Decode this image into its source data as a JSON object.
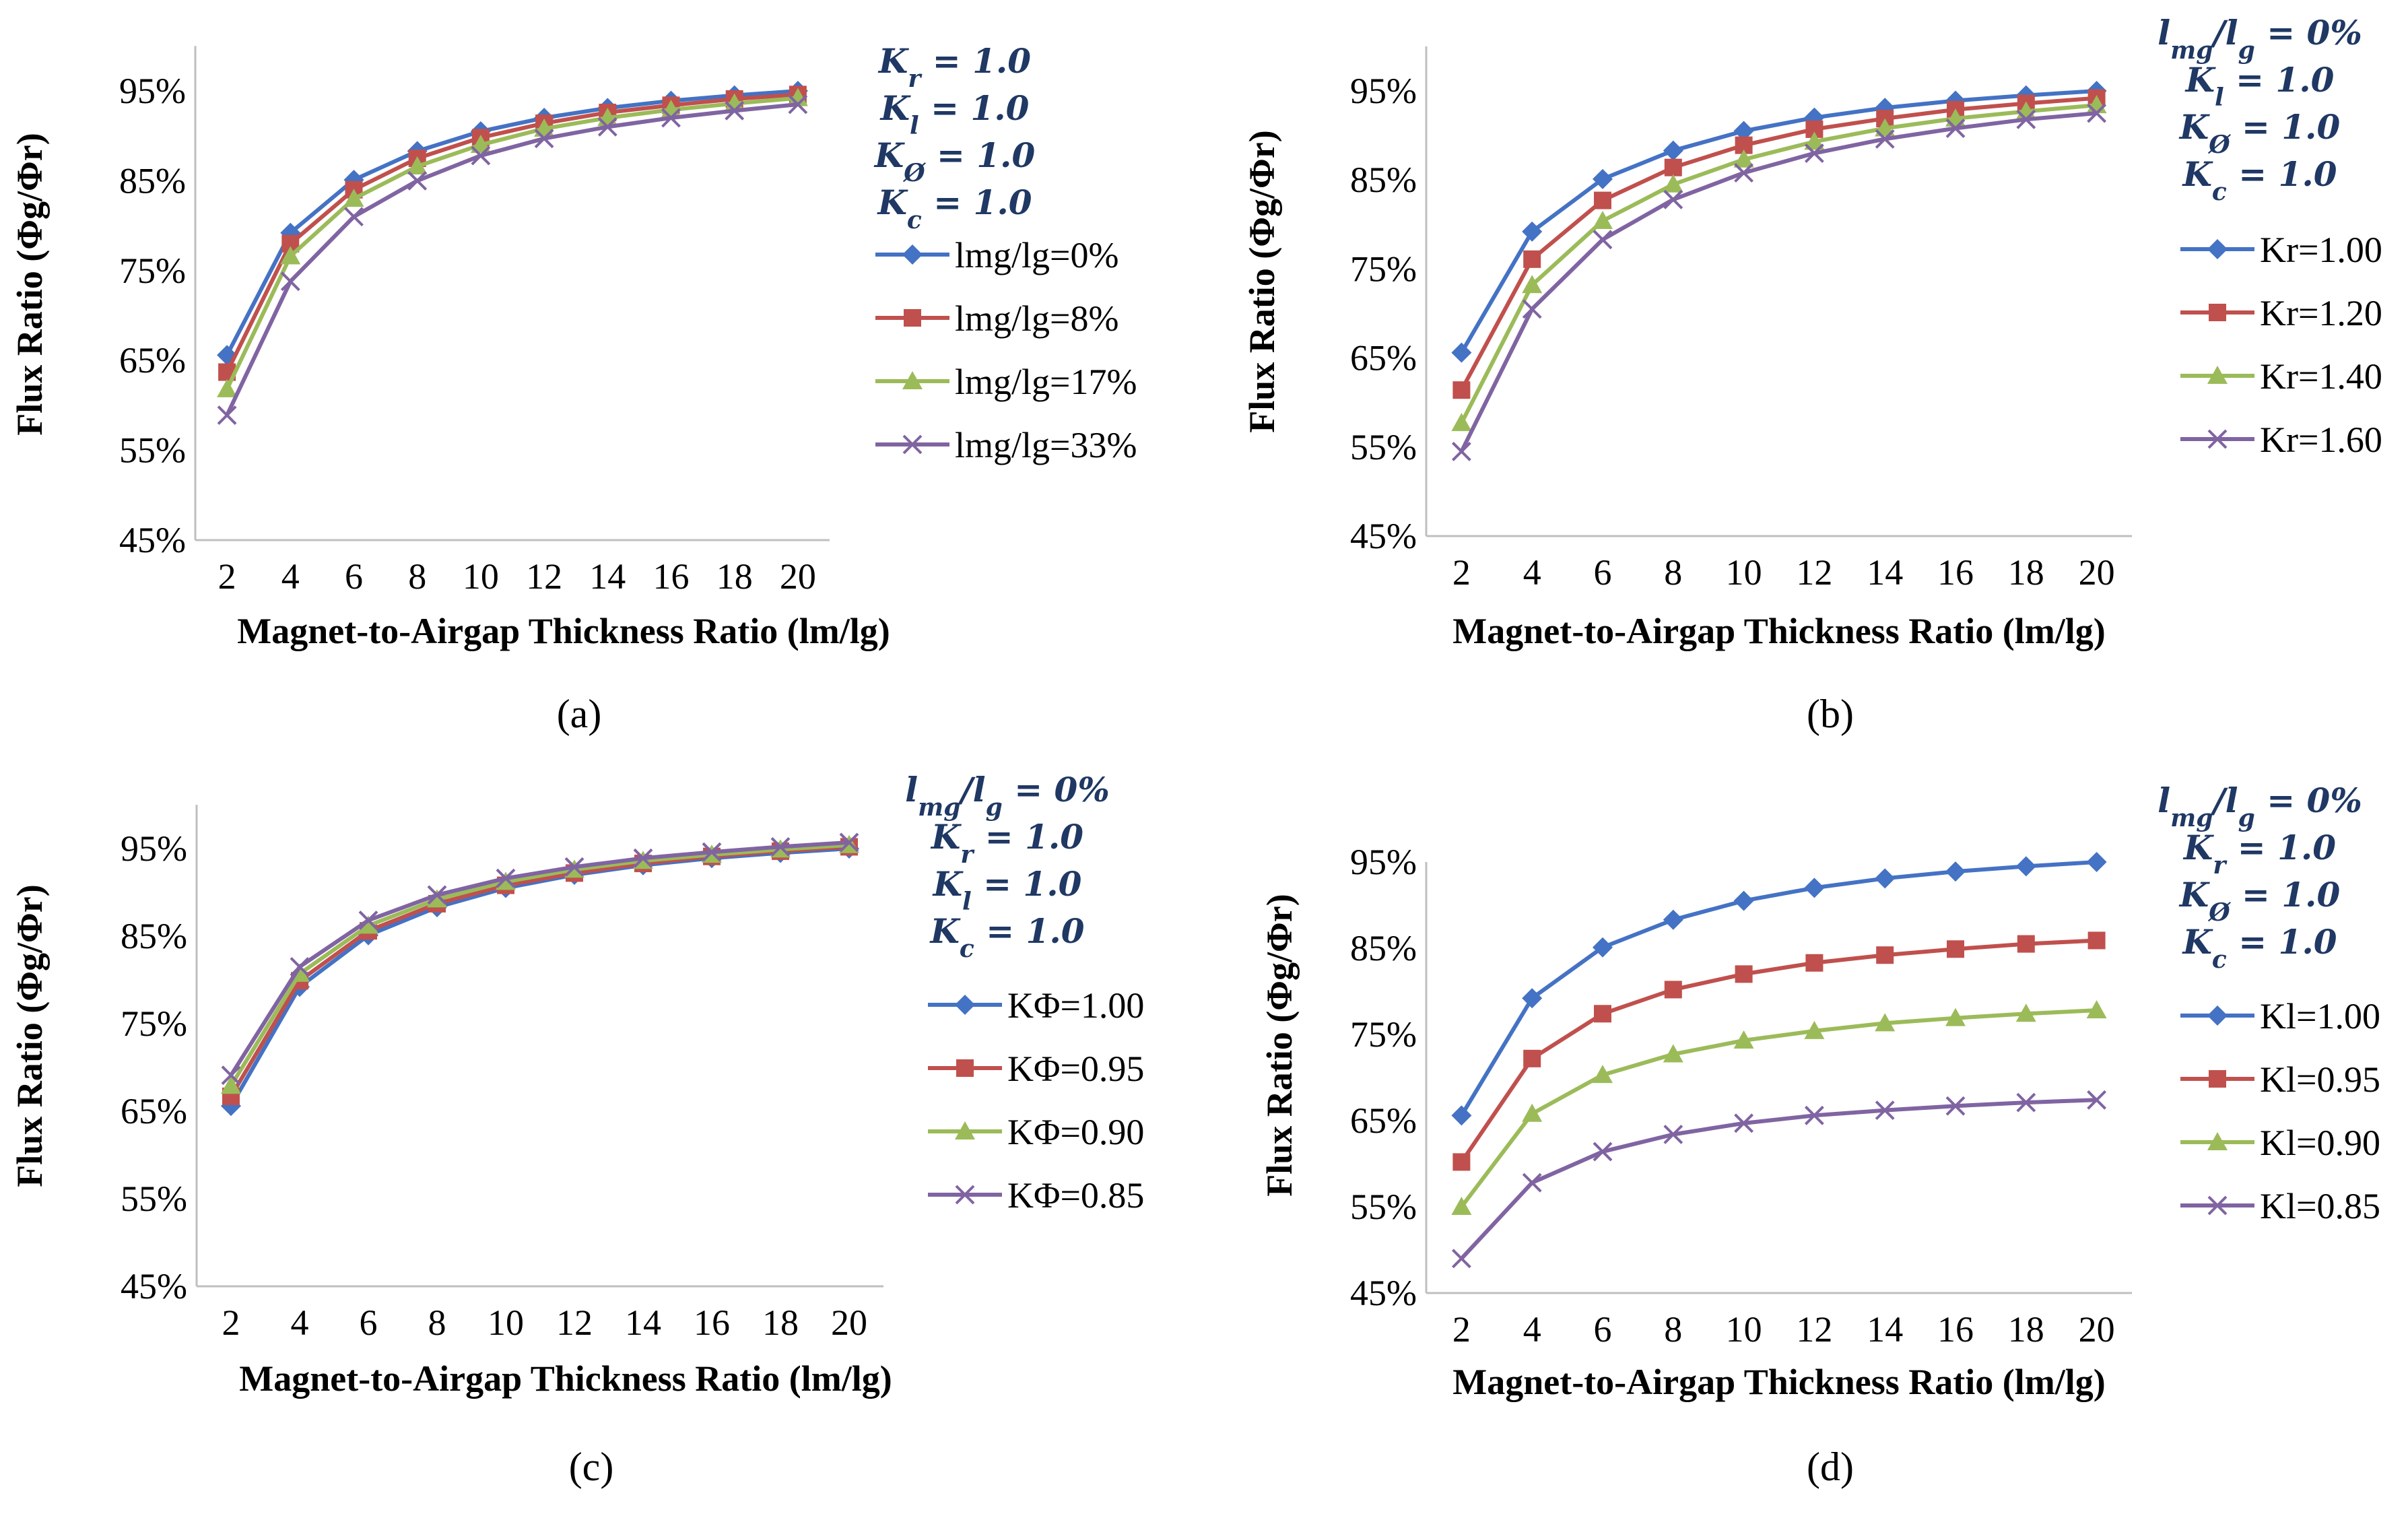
{
  "figure": {
    "y_tick_labels": [
      "45%",
      "55%",
      "65%",
      "75%",
      "85%",
      "95%"
    ],
    "x_tick_labels": [
      "2",
      "4",
      "6",
      "8",
      "10",
      "12",
      "14",
      "16",
      "18",
      "20"
    ]
  },
  "chart_data": [
    {
      "id": "a",
      "type": "line",
      "caption": "(a)",
      "ylabel": "Flux  Ratio (Φg/Φr)",
      "xlabel": "Magnet-to-Airgap Thickness Ratio (lm/lg)",
      "ylim": [
        45,
        100
      ],
      "x": [
        2,
        4,
        6,
        8,
        10,
        12,
        14,
        16,
        18,
        20
      ],
      "params": [
        "K_r = 1.0",
        "K_l = 1.0",
        "K_Ø = 1.0",
        "K_c = 1.0"
      ],
      "series": [
        {
          "name": "lmg/lg=0%",
          "color": "#4472c4",
          "marker": "diamond",
          "values": [
            65.6,
            79.2,
            85.1,
            88.3,
            90.5,
            92.0,
            93.1,
            93.9,
            94.5,
            95.0
          ]
        },
        {
          "name": "lmg/lg=8%",
          "color": "#c0504d",
          "marker": "square",
          "values": [
            63.7,
            78.0,
            84.0,
            87.5,
            89.8,
            91.4,
            92.6,
            93.4,
            94.1,
            94.6
          ]
        },
        {
          "name": "lmg/lg=17%",
          "color": "#9bbb59",
          "marker": "triangle",
          "values": [
            61.8,
            76.6,
            83.0,
            86.6,
            89.0,
            90.8,
            92.0,
            92.9,
            93.6,
            94.2
          ]
        },
        {
          "name": "lmg/lg=33%",
          "color": "#8064a2",
          "marker": "x",
          "values": [
            58.9,
            73.8,
            81.0,
            85.0,
            87.8,
            89.7,
            91.0,
            92.0,
            92.8,
            93.5
          ]
        }
      ]
    },
    {
      "id": "b",
      "type": "line",
      "caption": "(b)",
      "ylabel": "Flux Ratio (Φg/Φr)",
      "xlabel": "Magnet-to-Airgap Thickness Ratio (lm/lg)",
      "ylim": [
        45,
        100
      ],
      "x": [
        2,
        4,
        6,
        8,
        10,
        12,
        14,
        16,
        18,
        20
      ],
      "params": [
        "l_mg/l_g = 0%",
        "K_l = 1.0",
        "K_Ø = 1.0",
        "K_c = 1.0"
      ],
      "series": [
        {
          "name": "Kr=1.00",
          "color": "#4472c4",
          "marker": "diamond",
          "values": [
            65.6,
            79.2,
            85.1,
            88.3,
            90.5,
            92.0,
            93.1,
            93.9,
            94.5,
            95.0
          ]
        },
        {
          "name": "Kr=1.20",
          "color": "#c0504d",
          "marker": "square",
          "values": [
            61.4,
            76.1,
            82.7,
            86.4,
            88.9,
            90.7,
            91.9,
            92.9,
            93.6,
            94.2
          ]
        },
        {
          "name": "Kr=1.40",
          "color": "#9bbb59",
          "marker": "triangle",
          "values": [
            57.7,
            73.2,
            80.4,
            84.5,
            87.3,
            89.3,
            90.8,
            91.9,
            92.7,
            93.4
          ]
        },
        {
          "name": "Kr=1.60",
          "color": "#8064a2",
          "marker": "x",
          "values": [
            54.5,
            70.5,
            78.3,
            82.8,
            85.8,
            88.0,
            89.6,
            90.8,
            91.8,
            92.5
          ]
        }
      ]
    },
    {
      "id": "c",
      "type": "line",
      "caption": "(c)",
      "ylabel": "Flux Ratio (Φg/Φr)",
      "xlabel": "Magnet-to-Airgap Thickness Ratio (lm/lg)",
      "ylim": [
        45,
        100
      ],
      "x": [
        2,
        4,
        6,
        8,
        10,
        12,
        14,
        16,
        18,
        20
      ],
      "params": [
        "l_mg/l_g = 0%",
        "K_r = 1.0",
        "K_l = 1.0",
        "K_c = 1.0"
      ],
      "series": [
        {
          "name": "KΦ=1.00",
          "color": "#4472c4",
          "marker": "diamond",
          "values": [
            65.6,
            79.2,
            85.1,
            88.3,
            90.5,
            92.0,
            93.1,
            93.9,
            94.5,
            95.0
          ]
        },
        {
          "name": "KΦ=0.95",
          "color": "#c0504d",
          "marker": "square",
          "values": [
            66.7,
            79.9,
            85.6,
            88.7,
            90.8,
            92.2,
            93.3,
            94.1,
            94.7,
            95.2
          ]
        },
        {
          "name": "KΦ=0.90",
          "color": "#9bbb59",
          "marker": "triangle",
          "values": [
            67.9,
            80.7,
            86.2,
            89.2,
            91.2,
            92.6,
            93.6,
            94.3,
            94.9,
            95.4
          ]
        },
        {
          "name": "KΦ=0.85",
          "color": "#8064a2",
          "marker": "x",
          "values": [
            69.1,
            81.5,
            86.8,
            89.7,
            91.6,
            92.9,
            93.9,
            94.6,
            95.2,
            95.7
          ]
        }
      ]
    },
    {
      "id": "d",
      "type": "line",
      "caption": "(d)",
      "ylabel": "Flux Ratio (Φg/Φr)",
      "xlabel": "Magnet-to-Airgap Thickness Ratio (lm/lg)",
      "ylim": [
        45,
        95
      ],
      "x": [
        2,
        4,
        6,
        8,
        10,
        12,
        14,
        16,
        18,
        20
      ],
      "params": [
        "l_mg/l_g = 0%",
        "K_r = 1.0",
        "K_Ø = 1.0",
        "K_c = 1.0"
      ],
      "series": [
        {
          "name": "Kl=1.00",
          "color": "#4472c4",
          "marker": "diamond",
          "values": [
            65.6,
            79.2,
            85.1,
            88.3,
            90.5,
            92.0,
            93.1,
            93.9,
            94.5,
            95.0
          ]
        },
        {
          "name": "Kl=0.95",
          "color": "#c0504d",
          "marker": "square",
          "values": [
            60.2,
            72.2,
            77.4,
            80.2,
            82.0,
            83.3,
            84.2,
            84.9,
            85.5,
            85.9
          ]
        },
        {
          "name": "Kl=0.90",
          "color": "#9bbb59",
          "marker": "triangle",
          "values": [
            55.0,
            65.8,
            70.3,
            72.7,
            74.3,
            75.4,
            76.3,
            76.9,
            77.4,
            77.8
          ]
        },
        {
          "name": "Kl=0.85",
          "color": "#8064a2",
          "marker": "x",
          "values": [
            49.0,
            57.8,
            61.4,
            63.4,
            64.7,
            65.6,
            66.2,
            66.7,
            67.1,
            67.4
          ]
        }
      ]
    }
  ]
}
